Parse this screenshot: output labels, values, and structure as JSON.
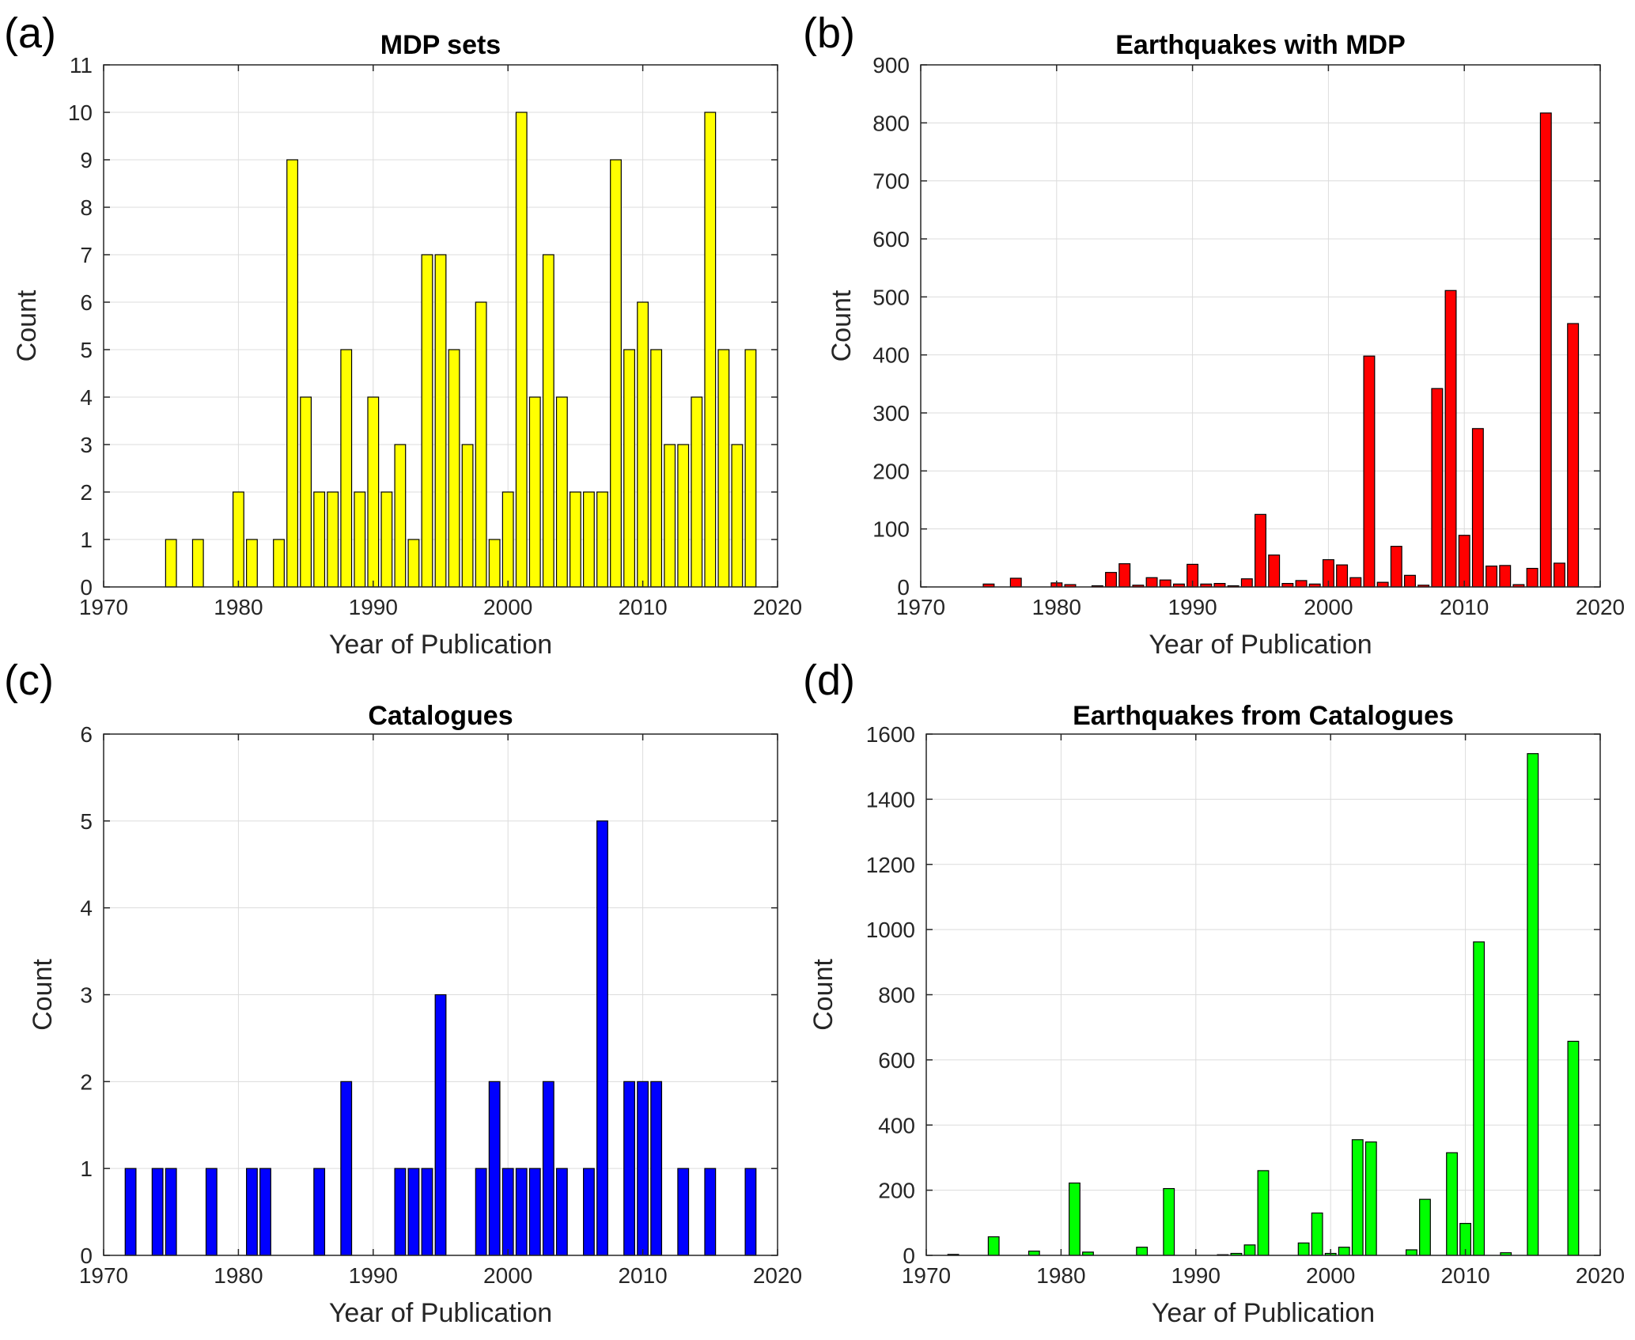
{
  "chart_data": [
    {
      "type": "bar",
      "panel_label": "(a)",
      "title": "MDP sets",
      "xlabel": "Year of Publication",
      "ylabel": "Count",
      "xlim": [
        1970,
        2020
      ],
      "ylim": [
        0,
        11
      ],
      "xticks": [
        1970,
        1980,
        1990,
        2000,
        2010,
        2020
      ],
      "yticks": [
        0,
        1,
        2,
        3,
        4,
        5,
        6,
        7,
        8,
        9,
        10,
        11
      ],
      "grid": true,
      "color": "#ffff00",
      "x": [
        1975,
        1977,
        1980,
        1981,
        1983,
        1984,
        1985,
        1986,
        1987,
        1988,
        1989,
        1990,
        1991,
        1992,
        1993,
        1994,
        1995,
        1996,
        1997,
        1998,
        1999,
        2000,
        2001,
        2002,
        2003,
        2004,
        2005,
        2006,
        2007,
        2008,
        2009,
        2010,
        2011,
        2012,
        2013,
        2014,
        2015,
        2016,
        2017,
        2018
      ],
      "values": [
        1,
        1,
        2,
        1,
        1,
        9,
        4,
        2,
        2,
        5,
        2,
        4,
        2,
        3,
        1,
        7,
        7,
        5,
        3,
        6,
        1,
        2,
        10,
        4,
        7,
        4,
        2,
        2,
        2,
        9,
        5,
        6,
        5,
        3,
        3,
        4,
        10,
        5,
        3,
        5
      ]
    },
    {
      "type": "bar",
      "panel_label": "(b)",
      "title": "Earthquakes with MDP",
      "xlabel": "Year of Publication",
      "ylabel": "Count",
      "xlim": [
        1970,
        2020
      ],
      "ylim": [
        0,
        900
      ],
      "xticks": [
        1970,
        1980,
        1990,
        2000,
        2010,
        2020
      ],
      "yticks": [
        0,
        100,
        200,
        300,
        400,
        500,
        600,
        700,
        800,
        900
      ],
      "grid": true,
      "color": "#ff0000",
      "x": [
        1975,
        1977,
        1980,
        1981,
        1983,
        1984,
        1985,
        1986,
        1987,
        1988,
        1989,
        1990,
        1991,
        1992,
        1993,
        1994,
        1995,
        1996,
        1997,
        1998,
        1999,
        2000,
        2001,
        2002,
        2003,
        2004,
        2005,
        2006,
        2007,
        2008,
        2009,
        2010,
        2011,
        2012,
        2013,
        2014,
        2015,
        2016,
        2017,
        2018
      ],
      "values": [
        5,
        15,
        7,
        4,
        2,
        25,
        40,
        3,
        16,
        12,
        5,
        39,
        5,
        6,
        2,
        14,
        125,
        55,
        6,
        11,
        5,
        47,
        38,
        16,
        398,
        8,
        70,
        20,
        3,
        342,
        511,
        89,
        273,
        36,
        37,
        4,
        32,
        817,
        41,
        454
      ]
    },
    {
      "type": "bar",
      "panel_label": "(c)",
      "title": "Catalogues",
      "xlabel": "Year of Publication",
      "ylabel": "Count",
      "xlim": [
        1970,
        2020
      ],
      "ylim": [
        0,
        6
      ],
      "xticks": [
        1970,
        1980,
        1990,
        2000,
        2010,
        2020
      ],
      "yticks": [
        0,
        1,
        2,
        3,
        4,
        5,
        6
      ],
      "grid": true,
      "color": "#0000ff",
      "x": [
        1972,
        1974,
        1975,
        1978,
        1981,
        1982,
        1986,
        1988,
        1992,
        1993,
        1994,
        1995,
        1998,
        1999,
        2000,
        2001,
        2002,
        2003,
        2004,
        2006,
        2007,
        2009,
        2010,
        2011,
        2013,
        2015,
        2018
      ],
      "values": [
        1,
        1,
        1,
        1,
        1,
        1,
        1,
        2,
        1,
        1,
        1,
        3,
        1,
        2,
        1,
        1,
        1,
        2,
        1,
        1,
        5,
        2,
        2,
        2,
        1,
        1,
        1
      ]
    },
    {
      "type": "bar",
      "panel_label": "(d)",
      "title": "Earthquakes from Catalogues",
      "xlabel": "Year of Publication",
      "ylabel": "Count",
      "xlim": [
        1970,
        2020
      ],
      "ylim": [
        0,
        1600
      ],
      "xticks": [
        1970,
        1980,
        1990,
        2000,
        2010,
        2020
      ],
      "yticks": [
        0,
        200,
        400,
        600,
        800,
        1000,
        1200,
        1400,
        1600
      ],
      "grid": true,
      "color": "#00ff00",
      "x": [
        1972,
        1975,
        1978,
        1981,
        1982,
        1986,
        1988,
        1992,
        1993,
        1994,
        1995,
        1998,
        1999,
        2000,
        2001,
        2002,
        2003,
        2006,
        2007,
        2009,
        2010,
        2011,
        2013,
        2015,
        2018
      ],
      "values": [
        3,
        57,
        13,
        222,
        10,
        25,
        205,
        2,
        6,
        32,
        260,
        38,
        130,
        6,
        25,
        355,
        348,
        17,
        172,
        315,
        98,
        962,
        8,
        1540,
        657
      ]
    }
  ]
}
